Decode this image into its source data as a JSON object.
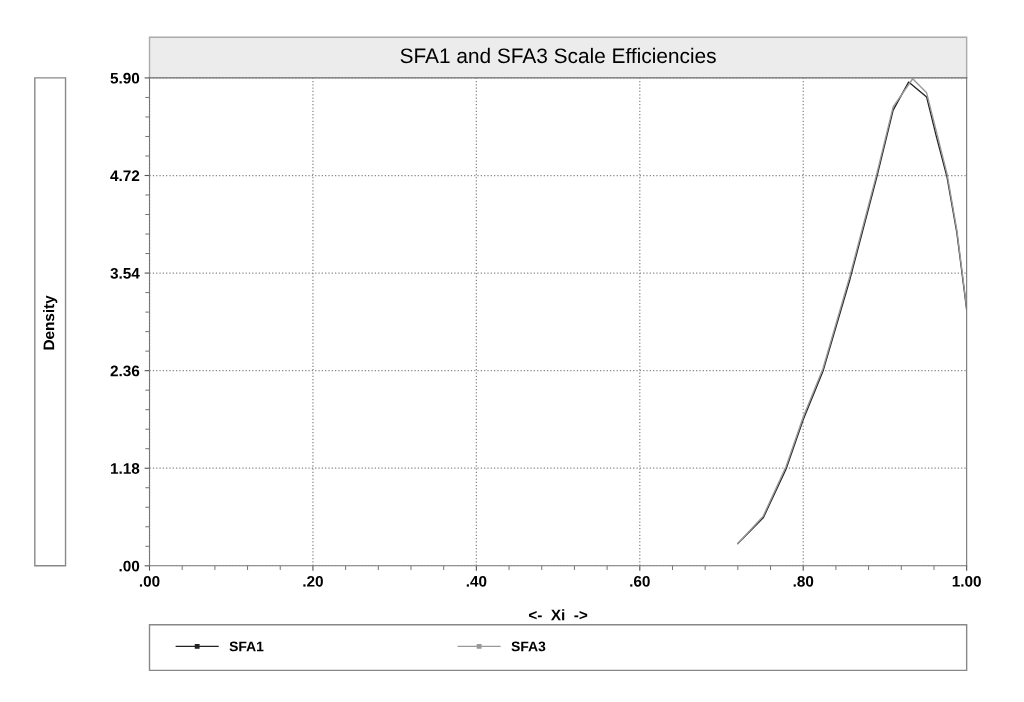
{
  "chart_data": {
    "type": "line",
    "title": "SFA1 and SFA3 Scale Efficiencies",
    "xlabel": "<-  Xi  ->",
    "ylabel": "Density",
    "series": [
      {
        "name": "SFA1",
        "color": "#222222",
        "x": [
          0.72,
          0.751,
          0.779,
          0.8,
          0.824,
          0.857,
          0.89,
          0.91,
          0.929,
          0.951,
          0.963,
          0.976,
          0.988,
          1.0
        ],
        "values": [
          0.27,
          0.58,
          1.17,
          1.77,
          2.35,
          3.46,
          4.7,
          5.51,
          5.85,
          5.67,
          5.19,
          4.7,
          4.03,
          3.1
        ]
      },
      {
        "name": "SFA3",
        "color": "#999999",
        "x": [
          0.72,
          0.751,
          0.779,
          0.8,
          0.824,
          0.857,
          0.89,
          0.91,
          0.934,
          0.951,
          0.963,
          0.976,
          0.988,
          1.0
        ],
        "values": [
          0.27,
          0.6,
          1.2,
          1.8,
          2.38,
          3.5,
          4.74,
          5.55,
          5.89,
          5.72,
          5.25,
          4.74,
          4.06,
          3.12
        ]
      }
    ],
    "xlim": [
      0,
      1
    ],
    "ylim": [
      0,
      5.9
    ],
    "xticks": [
      {
        "value": 0,
        "label": ".00"
      },
      {
        "value": 0.2,
        "label": ".20"
      },
      {
        "value": 0.4,
        "label": ".40"
      },
      {
        "value": 0.6,
        "label": ".60"
      },
      {
        "value": 0.8,
        "label": ".80"
      },
      {
        "value": 1.0,
        "label": "1.00"
      }
    ],
    "yticks": [
      {
        "value": 0,
        "label": ".00"
      },
      {
        "value": 1.18,
        "label": "1.18"
      },
      {
        "value": 2.36,
        "label": "2.36"
      },
      {
        "value": 3.54,
        "label": "3.54"
      },
      {
        "value": 4.72,
        "label": "4.72"
      },
      {
        "value": 5.9,
        "label": "5.90"
      }
    ],
    "grid": true,
    "legend": "bottom",
    "line_style": "solid"
  }
}
